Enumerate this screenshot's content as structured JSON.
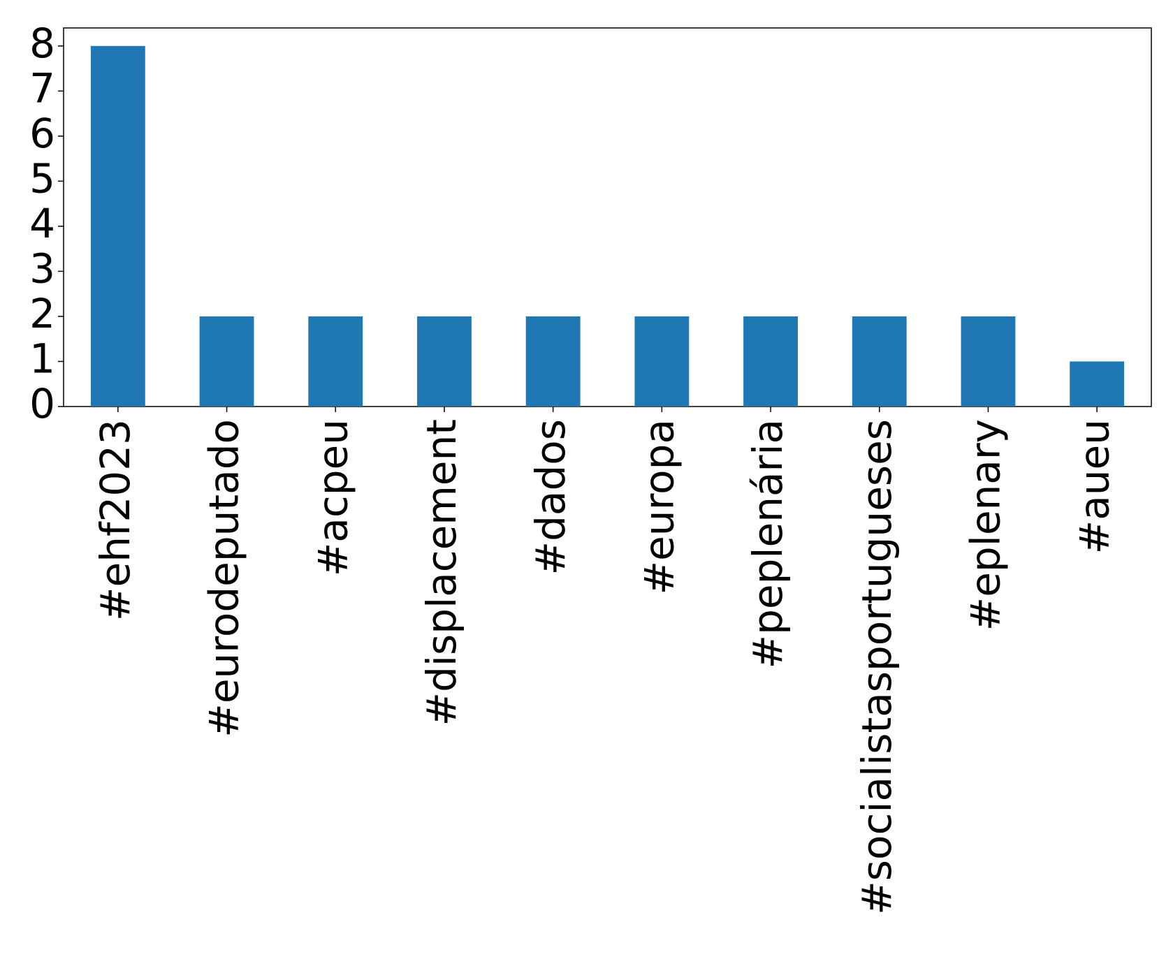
{
  "chart_data": {
    "type": "bar",
    "categories": [
      "#ehf2023",
      "#eurodeputado",
      "#acpeu",
      "#displacement",
      "#dados",
      "#europa",
      "#peplenária",
      "#socialistasportugueses",
      "#eplenary",
      "#aueu"
    ],
    "values": [
      8,
      2,
      2,
      2,
      2,
      2,
      2,
      2,
      2,
      1
    ],
    "color": "#1f77b4",
    "ylim": [
      0,
      8.4
    ],
    "yticks": [
      0,
      1,
      2,
      3,
      4,
      5,
      6,
      7,
      8
    ],
    "grid": false
  }
}
